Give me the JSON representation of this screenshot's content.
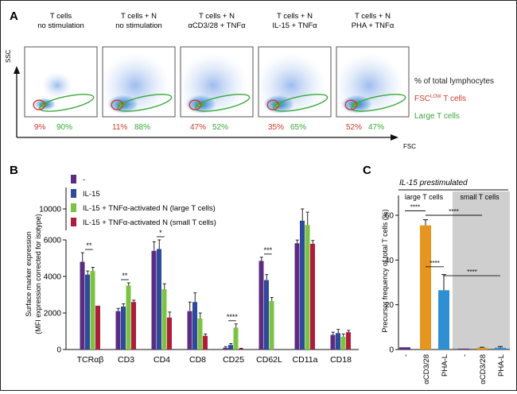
{
  "panelA": {
    "letter": "A",
    "y_axis_label": "SSC",
    "x_axis_label": "FSC",
    "plots": [
      {
        "title1": "T cells",
        "title2": "no stimulation",
        "title2_prefix": "",
        "pct_small": "9%",
        "pct_large": "90%"
      },
      {
        "title1": "T cells + N",
        "title2": "no stimulation",
        "title2_prefix": "",
        "pct_small": "11%",
        "pct_large": "88%"
      },
      {
        "title1": "T cells + N",
        "title2": "CD3/28 + TNF",
        "title2_prefix": "α",
        "title2_suffix": "α",
        "pct_small": "47%",
        "pct_large": "52%"
      },
      {
        "title1": "T cells + N",
        "title2": "IL-15 + TNF",
        "title2_prefix": "",
        "title2_suffix": "α",
        "pct_small": "35%",
        "pct_large": "65%"
      },
      {
        "title1": "T cells + N",
        "title2": "PHA + TNF",
        "title2_prefix": "",
        "title2_suffix": "α",
        "pct_small": "52%",
        "pct_large": "47%"
      }
    ],
    "legend": {
      "total": "% of total lymphocytes",
      "small_pre": "FSC",
      "small_sup": "LOW",
      "small_post": " T cells",
      "large": "Large T cells"
    },
    "colors": {
      "small": "#d23b2b",
      "large": "#3aa83a"
    }
  },
  "panelB": {
    "letter": "B",
    "ylabel1": "Surface marker expression",
    "ylabel2": "(MFI expression corrected for isotype)",
    "legend": [
      {
        "name": "-",
        "color": "#5a2d82"
      },
      {
        "name": "IL-15",
        "color": "#2e4a9a"
      },
      {
        "name": "IL-15 + TNFα-activated N (large T cells)",
        "color": "#7dc242"
      },
      {
        "name": "IL-15 + TNFα-activated N (small T cells)",
        "color": "#b01c3c"
      }
    ]
  },
  "panelC": {
    "letter": "C",
    "header": "IL-15 prestimulated",
    "group_large": "large T cells",
    "group_small": "small T cells",
    "ylabel": "Precursor frequency of total T cells (%)",
    "sig": "****"
  },
  "chart_data": [
    {
      "type": "bar",
      "title": "",
      "xlabel": "",
      "ylabel": "Surface marker expression (MFI expression corrected for isotype)",
      "categories": [
        "TCRαβ",
        "CD3",
        "CD4",
        "CD8",
        "CD25",
        "CD62L",
        "CD11a",
        "CD18"
      ],
      "y_ticks": [
        0,
        2000,
        4000,
        6000,
        10000
      ],
      "axis_break": [
        6000,
        8000
      ],
      "ylim": [
        0,
        12000
      ],
      "series": [
        {
          "name": "-",
          "values": [
            4800,
            2100,
            5400,
            2100,
            100,
            4850,
            6800,
            800
          ],
          "errors": [
            500,
            150,
            500,
            500,
            60,
            200,
            300,
            150
          ]
        },
        {
          "name": "IL-15",
          "values": [
            4100,
            2350,
            5500,
            2600,
            250,
            3800,
            8900,
            900
          ],
          "errors": [
            200,
            150,
            500,
            500,
            80,
            300,
            1100,
            200
          ]
        },
        {
          "name": "IL-15 + TNFα-activated N (large T cells)",
          "values": [
            4300,
            3500,
            3300,
            1700,
            1200,
            2650,
            8500,
            700
          ],
          "errors": [
            200,
            150,
            300,
            300,
            200,
            200,
            1200,
            150
          ]
        },
        {
          "name": "IL-15 + TNFα-activated N (small T cells)",
          "values": [
            2400,
            2600,
            1750,
            750,
            50,
            0,
            6750,
            950
          ],
          "errors": [
            0,
            100,
            300,
            100,
            20,
            0,
            300,
            100
          ]
        }
      ],
      "significance": [
        {
          "category": "TCRαβ",
          "label": "**"
        },
        {
          "category": "CD3",
          "label": "**"
        },
        {
          "category": "CD4",
          "label": "*"
        },
        {
          "category": "CD25",
          "label": "****"
        },
        {
          "category": "CD62L",
          "label": "***"
        }
      ]
    },
    {
      "type": "bar",
      "title": "IL-15 prestimulated",
      "xlabel": "",
      "ylabel": "Precursor frequency of total T cells (%)",
      "categories": [
        "-",
        "αCD3/28",
        "PHA-L",
        "-",
        "αCD3/28",
        "PHA-L"
      ],
      "groups": [
        "large T cells",
        "large T cells",
        "large T cells",
        "small T cells",
        "small T cells",
        "small T cells"
      ],
      "values": [
        1,
        55.5,
        26.5,
        0.4,
        0.8,
        0.8
      ],
      "errors": [
        0,
        2.5,
        7,
        0,
        0.2,
        0.5
      ],
      "colors": [
        "#5a2d82",
        "#e6961e",
        "#2e8fd1",
        "#5a2d82",
        "#e6961e",
        "#2e8fd1"
      ],
      "ylim": [
        0,
        70
      ],
      "y_ticks": [
        0,
        20,
        40,
        60
      ],
      "significance": "****"
    }
  ]
}
